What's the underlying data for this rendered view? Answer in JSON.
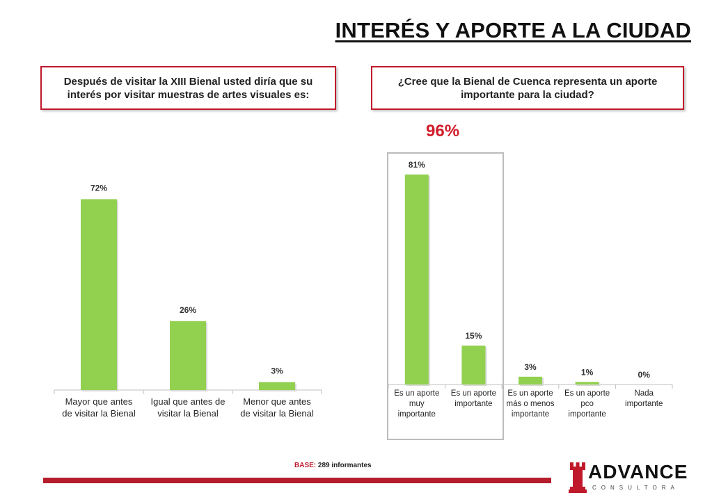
{
  "title": "INTERÉS Y APORTE A LA CIUDAD",
  "question_left": "Después de visitar la XIII Bienal usted diría que su interés por visitar muestras de artes visuales es:",
  "question_right": "¿Cree que la Bienal de Cuenca representa un aporte importante para la ciudad?",
  "highlight_percent": "96%",
  "base": {
    "label": "BASE:",
    "value": "289 informantes"
  },
  "logo": {
    "word": "ADVANCE",
    "sub": "CONSULTORA"
  },
  "colors": {
    "bar": "#92d050",
    "accent": "#c0192b",
    "highlight_text": "#d01c2a",
    "highlight_box": "#bcbcbc"
  },
  "chart_data": [
    {
      "type": "bar",
      "categories": [
        [
          "Mayor que antes",
          "de visitar la Bienal"
        ],
        [
          "Igual que antes de",
          "visitar la Bienal"
        ],
        [
          "Menor que antes",
          "de visitar la Bienal"
        ]
      ],
      "values": [
        72,
        26,
        3
      ],
      "data_labels": [
        "72%",
        "26%",
        "3%"
      ],
      "ylim": [
        0,
        75
      ]
    },
    {
      "type": "bar",
      "categories": [
        [
          "Es un aporte",
          "muy",
          "importante"
        ],
        [
          "Es un aporte",
          "importante"
        ],
        [
          "Es un aporte",
          "más o menos",
          "importante"
        ],
        [
          "Es un aporte",
          "pco",
          "importante"
        ],
        [
          "Nada",
          "importante"
        ]
      ],
      "values": [
        81,
        15,
        3,
        1,
        0
      ],
      "data_labels": [
        "81%",
        "15%",
        "3%",
        "1%",
        "0%"
      ],
      "ylim": [
        0,
        81
      ]
    }
  ]
}
